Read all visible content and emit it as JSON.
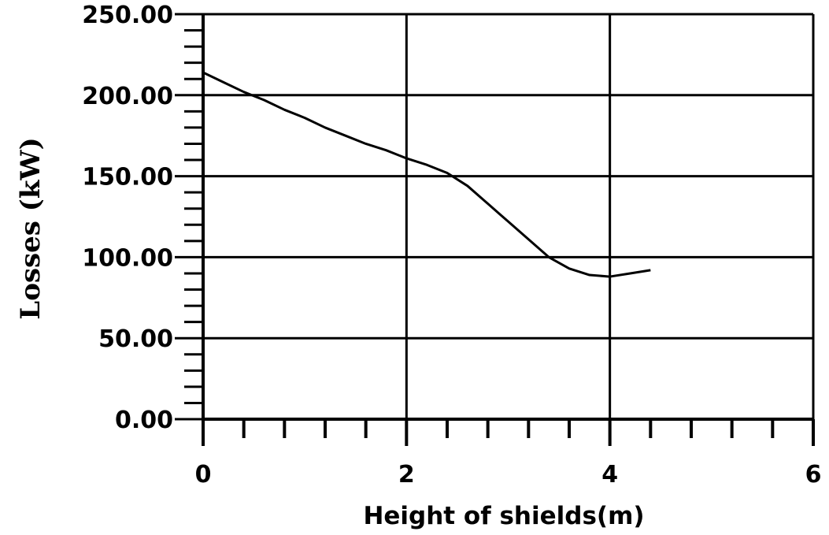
{
  "chart_data": {
    "type": "line",
    "title": "",
    "xlabel": "Height of shields(m)",
    "ylabel": "Losses (kW)",
    "xlim": [
      0,
      6
    ],
    "ylim": [
      0,
      250
    ],
    "x_ticks": [
      0,
      2,
      4,
      6
    ],
    "x_tick_labels": [
      "0",
      "2",
      "4",
      "6"
    ],
    "x_minor_step": 0.4,
    "y_ticks": [
      0,
      50,
      100,
      150,
      200,
      250
    ],
    "y_tick_labels": [
      "0.00",
      "50.00",
      "100.00",
      "150.00",
      "200.00",
      "250.00"
    ],
    "y_minor_step": 10,
    "grid": true,
    "legend": "none",
    "colors": {
      "line": "#000000",
      "grid": "#000000"
    },
    "series": [
      {
        "x": [
          0,
          0.2,
          0.4,
          0.6,
          0.8,
          1.0,
          1.2,
          1.4,
          1.6,
          1.8,
          2.0,
          2.2,
          2.4,
          2.6,
          2.8,
          3.0,
          3.2,
          3.4,
          3.6,
          3.8,
          4.0,
          4.2,
          4.4
        ],
        "values": [
          214,
          208,
          202,
          197,
          191,
          186,
          180,
          175,
          170,
          166,
          161,
          157,
          152,
          144,
          133,
          122,
          111,
          100,
          93,
          89,
          88,
          90,
          92
        ]
      }
    ]
  }
}
